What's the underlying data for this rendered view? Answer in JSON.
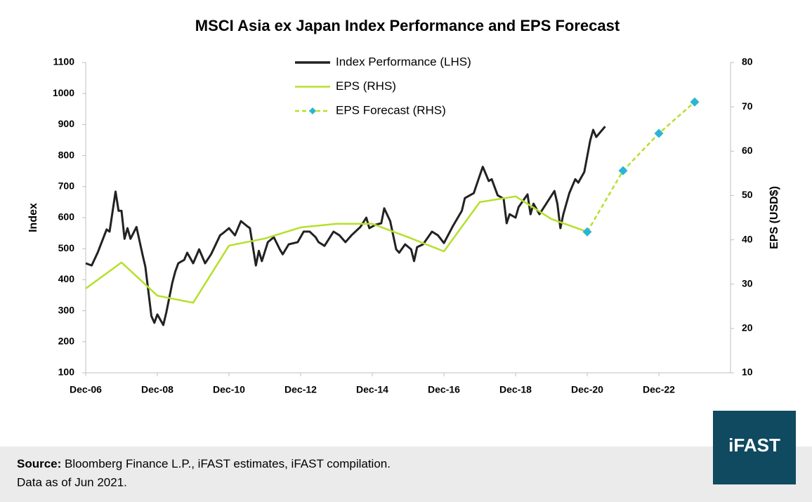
{
  "chart_data": {
    "type": "line",
    "title": "MSCI Asia ex Japan Index Performance and EPS Forecast",
    "y_label": "Index",
    "y2_label": "EPS (USD$)",
    "xlim": [
      "Dec-06",
      "Dec-24"
    ],
    "xticks": [
      "Dec-06",
      "Dec-08",
      "Dec-10",
      "Dec-12",
      "Dec-14",
      "Dec-16",
      "Dec-18",
      "Dec-20",
      "Dec-22"
    ],
    "ylim": [
      100,
      1100
    ],
    "yticks": [
      100,
      200,
      300,
      400,
      500,
      600,
      700,
      800,
      900,
      1000,
      1100
    ],
    "y2lim": [
      10,
      80
    ],
    "y2ticks": [
      10,
      20,
      30,
      40,
      50,
      60,
      70,
      80
    ],
    "legend": "top",
    "series": [
      {
        "name": "Index Performance (LHS)",
        "color": "#222222",
        "axis": "y",
        "x": [
          "Dec-06",
          "Feb-07",
          "Apr-07",
          "Jul-07",
          "Aug-07",
          "Oct-07",
          "Nov-07",
          "Dec-07",
          "Jan-08",
          "Feb-08",
          "Mar-08",
          "May-08",
          "Jul-08",
          "Aug-08",
          "Oct-08",
          "Nov-08",
          "Dec-08",
          "Feb-09",
          "Mar-09",
          "May-09",
          "Jun-09",
          "Jul-09",
          "Sep-09",
          "Oct-09",
          "Dec-09",
          "Feb-10",
          "Apr-10",
          "Jun-10",
          "Sep-10",
          "Oct-10",
          "Dec-10",
          "Feb-11",
          "Apr-11",
          "Jun-11",
          "Jul-11",
          "Sep-11",
          "Oct-11",
          "Nov-11",
          "Jan-12",
          "Mar-12",
          "May-12",
          "Jun-12",
          "Aug-12",
          "Nov-12",
          "Jan-13",
          "Mar-13",
          "May-13",
          "Jun-13",
          "Aug-13",
          "Nov-13",
          "Jan-14",
          "Mar-14",
          "May-14",
          "Aug-14",
          "Oct-14",
          "Nov-14",
          "Jan-15",
          "Mar-15",
          "Apr-15",
          "Jun-15",
          "Aug-15",
          "Sep-15",
          "Nov-15",
          "Jan-16",
          "Feb-16",
          "Mar-16",
          "May-16",
          "Aug-16",
          "Oct-16",
          "Dec-16",
          "Mar-17",
          "Jun-17",
          "Jul-17",
          "Oct-17",
          "Nov-17",
          "Jan-18",
          "Mar-18",
          "Apr-18",
          "Jun-18",
          "Aug-18",
          "Sep-18",
          "Oct-18",
          "Dec-18",
          "Jan-19",
          "Apr-19",
          "May-19",
          "Jun-19",
          "Aug-19",
          "Oct-19",
          "Jan-20",
          "Feb-20",
          "Mar-20",
          "Apr-20",
          "Jun-20",
          "Aug-20",
          "Sep-20",
          "Nov-20",
          "Jan-21",
          "Feb-21",
          "Mar-21",
          "Jun-21"
        ],
        "values": [
          453,
          446,
          487,
          562,
          555,
          684,
          622,
          622,
          532,
          566,
          532,
          570,
          482,
          441,
          283,
          261,
          288,
          254,
          295,
          390,
          426,
          453,
          464,
          487,
          453,
          498,
          453,
          482,
          543,
          550,
          566,
          543,
          589,
          573,
          566,
          446,
          493,
          460,
          521,
          537,
          498,
          482,
          514,
          521,
          555,
          555,
          537,
          521,
          509,
          555,
          543,
          521,
          543,
          570,
          600,
          566,
          577,
          582,
          630,
          589,
          498,
          487,
          514,
          498,
          460,
          505,
          514,
          555,
          543,
          518,
          573,
          622,
          663,
          679,
          708,
          764,
          718,
          724,
          672,
          661,
          582,
          611,
          600,
          634,
          675,
          611,
          645,
          611,
          641,
          686,
          645,
          566,
          611,
          679,
          724,
          713,
          747,
          849,
          883,
          860,
          894
        ]
      },
      {
        "name": "EPS (RHS)",
        "color": "#b5e02a",
        "axis": "y2",
        "x": [
          "Dec-06",
          "Dec-07",
          "Dec-08",
          "Dec-09",
          "Dec-10",
          "Dec-11",
          "Dec-12",
          "Dec-13",
          "Dec-14",
          "Dec-15",
          "Dec-16",
          "Dec-17",
          "Dec-18",
          "Dec-19",
          "Dec-20"
        ],
        "values": [
          29.0,
          34.9,
          27.4,
          25.8,
          38.7,
          40.3,
          42.8,
          43.6,
          43.6,
          40.6,
          37.4,
          48.5,
          49.8,
          44.7,
          41.8
        ]
      },
      {
        "name": "EPS Forecast (RHS)",
        "color": "#b5e02a",
        "marker_color": "#2cb4d4",
        "dash": true,
        "marker": "diamond",
        "axis": "y2",
        "x": [
          "Dec-20",
          "Dec-21",
          "Dec-22",
          "Dec-23"
        ],
        "values": [
          41.8,
          55.6,
          64.0,
          71.1
        ]
      }
    ],
    "source_label": "Source:",
    "source": "Bloomberg Finance L.P., iFAST estimates, iFAST compilation.",
    "note": "Data as of Jun 2021.",
    "logo": "iFAST"
  }
}
